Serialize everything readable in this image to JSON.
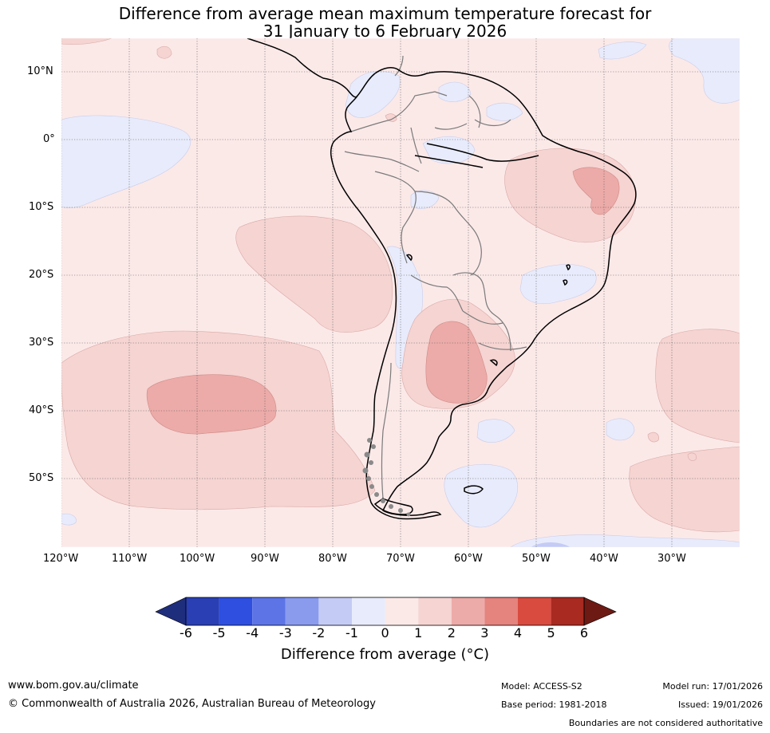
{
  "title": {
    "line1": "Difference from average mean maximum temperature forecast for",
    "line2": "31 January to 6 February 2026"
  },
  "lat_labels": [
    "10°N",
    "0°",
    "10°S",
    "20°S",
    "30°S",
    "40°S",
    "50°S"
  ],
  "lon_labels": [
    "120°W",
    "110°W",
    "100°W",
    "90°W",
    "80°W",
    "70°W",
    "60°W",
    "50°W",
    "40°W",
    "30°W"
  ],
  "colorbar": {
    "ticks": [
      "-6",
      "-5",
      "-4",
      "-3",
      "-2",
      "-1",
      "0",
      "1",
      "2",
      "3",
      "4",
      "5",
      "6"
    ],
    "colors": [
      "#1f2d7d",
      "#2a3fb3",
      "#2e4fe0",
      "#5c74e6",
      "#8a9bee",
      "#c4cbf5",
      "#e8ebfb",
      "#fbe9e8",
      "#f5d4d2",
      "#ecaba8",
      "#e5837e",
      "#d94a3f",
      "#a82a20",
      "#6e1a14"
    ],
    "label": "Difference from average (°C)"
  },
  "footer": {
    "url": "www.bom.gov.au/climate",
    "copyright": "© Commonwealth of Australia 2026, Australian Bureau of Meteorology",
    "model": "Model: ACCESS-S2",
    "base_period": "Base period: 1981-2018",
    "model_run": "Model run: 17/01/2026",
    "issued": "Issued: 19/01/2026",
    "disclaimer": "Boundaries are not considered authoritative"
  }
}
